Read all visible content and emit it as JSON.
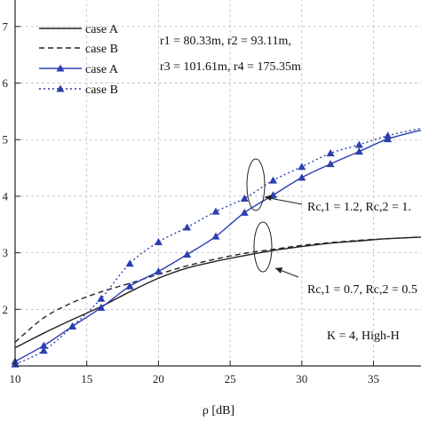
{
  "chart_data": {
    "type": "line",
    "title": "",
    "xlabel": "ρ [dB]",
    "ylabel": "",
    "xlim": [
      10,
      38.5
    ],
    "ylim": [
      0.1,
      0.75
    ],
    "x_ticks": [
      10,
      15,
      20,
      25,
      30,
      35
    ],
    "y_ticks": [
      {
        "value": 0.2,
        "label": "2"
      },
      {
        "value": 0.3,
        "label": "3"
      },
      {
        "value": 0.4,
        "label": "4"
      },
      {
        "value": 0.5,
        "label": "5"
      },
      {
        "value": 0.6,
        "label": "6"
      },
      {
        "value": 0.7,
        "label": "7"
      }
    ],
    "grid": true,
    "legend": {
      "placement": "top-left",
      "entries": [
        "case A",
        "case B",
        "case A",
        "case B"
      ]
    },
    "series": [
      {
        "name": "case A",
        "style": "solid",
        "color": "#222222",
        "marker": "none",
        "x": [
          10,
          12,
          14,
          16,
          18,
          20,
          22,
          24,
          26,
          28,
          30,
          32,
          34,
          36,
          38.5
        ],
        "y": [
          0.132,
          0.158,
          0.182,
          0.205,
          0.231,
          0.255,
          0.273,
          0.285,
          0.295,
          0.304,
          0.311,
          0.317,
          0.321,
          0.325,
          0.328
        ]
      },
      {
        "name": "case B",
        "style": "dashed",
        "color": "#222222",
        "marker": "none",
        "x": [
          10,
          12,
          14,
          16,
          18,
          20,
          22,
          24,
          26,
          28,
          30,
          32,
          34,
          36,
          38.5
        ],
        "y": [
          0.142,
          0.185,
          0.212,
          0.231,
          0.246,
          0.262,
          0.277,
          0.289,
          0.299,
          0.306,
          0.313,
          0.318,
          0.322,
          0.325,
          0.328
        ]
      },
      {
        "name": "case A",
        "style": "solid",
        "color": "#2b3fb0",
        "marker": "triangle-filled",
        "x": [
          10,
          12,
          14,
          16,
          18,
          20,
          22,
          24,
          26,
          28,
          30,
          32,
          34,
          36,
          38.5
        ],
        "y": [
          0.108,
          0.136,
          0.17,
          0.203,
          0.241,
          0.267,
          0.297,
          0.329,
          0.371,
          0.402,
          0.433,
          0.457,
          0.479,
          0.501,
          0.518
        ]
      },
      {
        "name": "case B",
        "style": "dotted",
        "color": "#2b3fb0",
        "marker": "triangle-filled",
        "x": [
          10,
          12,
          14,
          16,
          18,
          20,
          22,
          24,
          26,
          28,
          30,
          32,
          34,
          36,
          38.5
        ],
        "y": [
          0.103,
          0.127,
          0.17,
          0.219,
          0.281,
          0.319,
          0.345,
          0.373,
          0.396,
          0.428,
          0.452,
          0.476,
          0.491,
          0.507,
          0.521
        ]
      }
    ],
    "annotations": {
      "r_line1": "r1 = 80.33m, r2 = 93.11m,",
      "r_line2": "r3 = 101.61m, r4 = 175.35m",
      "rc_upper": "Rc,1 = 1.2, Rc,2 = 1.",
      "rc_lower": "Rc,1 = 0.7, Rc,2 = 0.5",
      "k_label": "K = 4, High-H"
    }
  }
}
